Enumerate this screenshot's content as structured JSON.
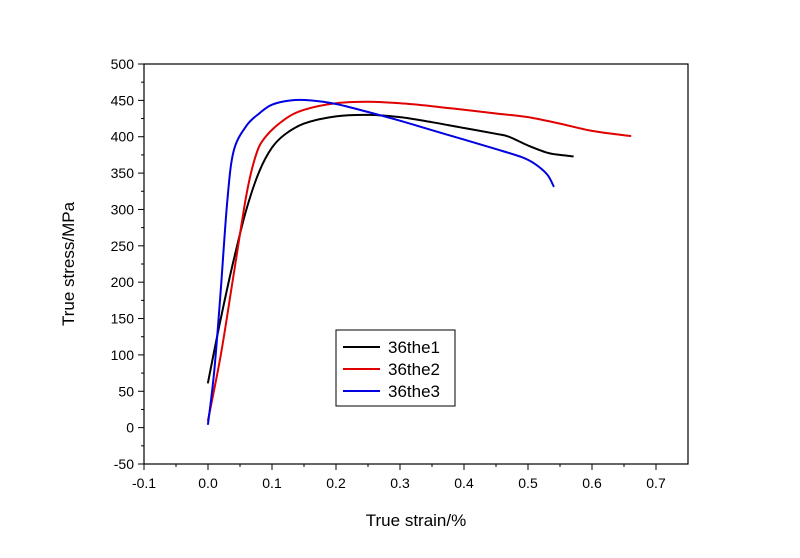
{
  "chart_data": {
    "type": "line",
    "xlabel": "True strain/%",
    "ylabel": "True stress/MPa",
    "xlim": [
      -0.1,
      0.75
    ],
    "ylim": [
      -50,
      500
    ],
    "x_ticks": [
      -0.1,
      0.0,
      0.1,
      0.2,
      0.3,
      0.4,
      0.5,
      0.6,
      0.7
    ],
    "x_tick_labels": [
      "-0.1",
      "0.0",
      "0.1",
      "0.2",
      "0.3",
      "0.4",
      "0.5",
      "0.6",
      "0.7"
    ],
    "y_ticks": [
      -50,
      0,
      50,
      100,
      150,
      200,
      250,
      300,
      350,
      400,
      450,
      500
    ],
    "y_tick_labels": [
      "-50",
      "0",
      "50",
      "100",
      "150",
      "200",
      "250",
      "300",
      "350",
      "400",
      "450",
      "500"
    ],
    "grid": false,
    "legend_position": "center",
    "series": [
      {
        "name": "36the1",
        "color": "#000000",
        "points": [
          [
            0.0,
            62
          ],
          [
            0.02,
            150
          ],
          [
            0.04,
            230
          ],
          [
            0.06,
            300
          ],
          [
            0.08,
            352
          ],
          [
            0.1,
            385
          ],
          [
            0.12,
            403
          ],
          [
            0.15,
            418
          ],
          [
            0.2,
            428
          ],
          [
            0.25,
            430
          ],
          [
            0.3,
            427
          ],
          [
            0.35,
            420
          ],
          [
            0.4,
            412
          ],
          [
            0.45,
            404
          ],
          [
            0.47,
            400
          ],
          [
            0.5,
            388
          ],
          [
            0.53,
            378
          ],
          [
            0.55,
            375
          ],
          [
            0.57,
            373
          ]
        ]
      },
      {
        "name": "36the2",
        "color": "#e00000",
        "points": [
          [
            0.0,
            10
          ],
          [
            0.02,
            100
          ],
          [
            0.04,
            210
          ],
          [
            0.06,
            320
          ],
          [
            0.075,
            375
          ],
          [
            0.09,
            400
          ],
          [
            0.12,
            424
          ],
          [
            0.15,
            437
          ],
          [
            0.2,
            446
          ],
          [
            0.25,
            448
          ],
          [
            0.3,
            446
          ],
          [
            0.35,
            442
          ],
          [
            0.4,
            437
          ],
          [
            0.45,
            432
          ],
          [
            0.5,
            427
          ],
          [
            0.55,
            418
          ],
          [
            0.6,
            408
          ],
          [
            0.66,
            401
          ]
        ]
      },
      {
        "name": "36the3",
        "color": "#0000e0",
        "points": [
          [
            0.0,
            5
          ],
          [
            0.01,
            80
          ],
          [
            0.02,
            190
          ],
          [
            0.03,
            310
          ],
          [
            0.04,
            380
          ],
          [
            0.06,
            415
          ],
          [
            0.08,
            432
          ],
          [
            0.1,
            444
          ],
          [
            0.13,
            450
          ],
          [
            0.16,
            450
          ],
          [
            0.2,
            445
          ],
          [
            0.25,
            434
          ],
          [
            0.3,
            422
          ],
          [
            0.35,
            409
          ],
          [
            0.4,
            396
          ],
          [
            0.45,
            383
          ],
          [
            0.49,
            372
          ],
          [
            0.51,
            363
          ],
          [
            0.53,
            348
          ],
          [
            0.54,
            332
          ]
        ]
      }
    ]
  }
}
